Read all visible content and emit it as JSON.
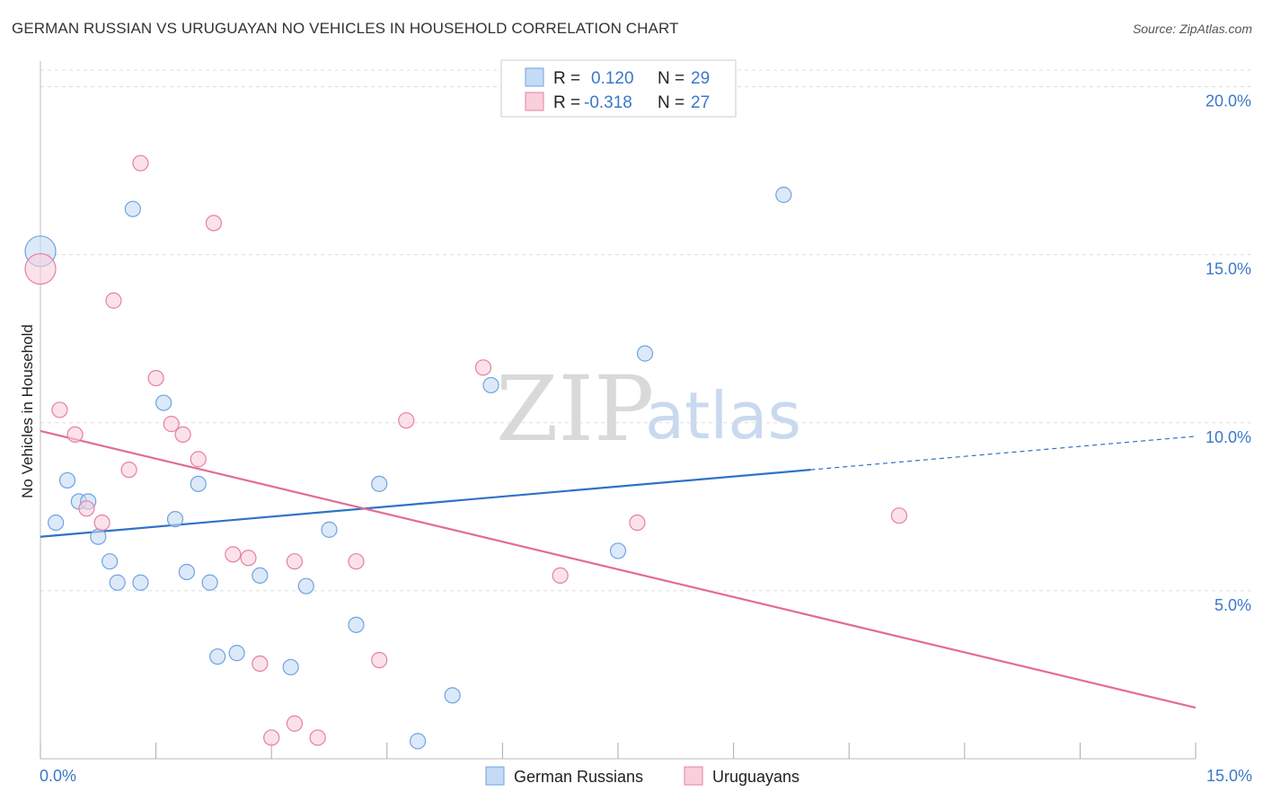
{
  "header": {
    "title": "GERMAN RUSSIAN VS URUGUAYAN NO VEHICLES IN HOUSEHOLD CORRELATION CHART",
    "source": "Source: ZipAtlas.com"
  },
  "legend": {
    "rows": [
      {
        "r_label": "R =",
        "r_value": "0.120",
        "n_label": "N =",
        "n_value": "29",
        "color": "#a8c8f0"
      },
      {
        "r_label": "R =",
        "r_value": "-0.318",
        "n_label": "N =",
        "n_value": "27",
        "color": "#f7b8cb"
      }
    ]
  },
  "bottom_legend": [
    "German Russians",
    "Uruguayans"
  ],
  "watermark": {
    "zip": "ZIP",
    "atlas": "atlas"
  },
  "chart_data": {
    "type": "scatter",
    "title": "GERMAN RUSSIAN VS URUGUAYAN NO VEHICLES IN HOUSEHOLD CORRELATION CHART",
    "xlabel": "",
    "ylabel": "No Vehicles in Household",
    "xlim": [
      0,
      15
    ],
    "ylim": [
      0,
      20
    ],
    "x_tick_labels": [
      "0.0%",
      "15.0%"
    ],
    "y_tick_labels": [
      "5.0%",
      "10.0%",
      "15.0%",
      "20.0%"
    ],
    "y_ticks": [
      5,
      10,
      15,
      20
    ],
    "grid": true,
    "legend_position": "top-center",
    "series": [
      {
        "name": "German Russians",
        "color": "#6fa3e0",
        "fill": "#c5daf5",
        "r": 0.12,
        "n": 29,
        "trend": {
          "x0": 0,
          "y0": 6.3,
          "x1": 10,
          "y1": 8.2,
          "dashed_to_x": 15,
          "dashed_to_y": 9.15
        },
        "points": [
          [
            0.0,
            14.4,
            "large"
          ],
          [
            0.2,
            6.7
          ],
          [
            0.35,
            7.9
          ],
          [
            0.5,
            7.3
          ],
          [
            0.62,
            7.3
          ],
          [
            0.75,
            6.3
          ],
          [
            0.9,
            5.6
          ],
          [
            1.0,
            5.0
          ],
          [
            1.2,
            15.6
          ],
          [
            1.3,
            5.0
          ],
          [
            1.6,
            10.1
          ],
          [
            1.75,
            6.8
          ],
          [
            1.9,
            5.3
          ],
          [
            2.05,
            7.8
          ],
          [
            2.2,
            5.0
          ],
          [
            2.3,
            2.9
          ],
          [
            2.55,
            3.0
          ],
          [
            2.85,
            5.2
          ],
          [
            3.25,
            2.6
          ],
          [
            3.45,
            4.9
          ],
          [
            3.75,
            6.5
          ],
          [
            4.1,
            3.8
          ],
          [
            4.4,
            7.8
          ],
          [
            4.9,
            0.5
          ],
          [
            5.35,
            1.8
          ],
          [
            5.85,
            10.6
          ],
          [
            7.5,
            5.9
          ],
          [
            7.85,
            11.5
          ],
          [
            9.65,
            16.0
          ]
        ]
      },
      {
        "name": "Uruguayans",
        "color": "#e77fa1",
        "fill": "#f9cfdc",
        "r": -0.318,
        "n": 27,
        "trend": {
          "x0": 0,
          "y0": 9.3,
          "x1": 15,
          "y1": 1.45
        },
        "points": [
          [
            0.0,
            13.9,
            "large"
          ],
          [
            0.25,
            9.9
          ],
          [
            0.45,
            9.2
          ],
          [
            0.6,
            7.1
          ],
          [
            0.8,
            6.7
          ],
          [
            0.95,
            13.0
          ],
          [
            1.15,
            8.2
          ],
          [
            1.3,
            16.9
          ],
          [
            1.5,
            10.8
          ],
          [
            1.7,
            9.5
          ],
          [
            1.85,
            9.2
          ],
          [
            2.05,
            8.5
          ],
          [
            2.25,
            15.2
          ],
          [
            2.5,
            5.8
          ],
          [
            2.7,
            5.7
          ],
          [
            2.85,
            2.7
          ],
          [
            3.0,
            0.6
          ],
          [
            3.3,
            1.0
          ],
          [
            3.3,
            5.6
          ],
          [
            3.6,
            0.6
          ],
          [
            4.1,
            5.6
          ],
          [
            4.4,
            2.8
          ],
          [
            4.75,
            9.6
          ],
          [
            5.75,
            11.1
          ],
          [
            6.75,
            5.2
          ],
          [
            7.75,
            6.7
          ],
          [
            11.15,
            6.9
          ]
        ]
      }
    ]
  }
}
